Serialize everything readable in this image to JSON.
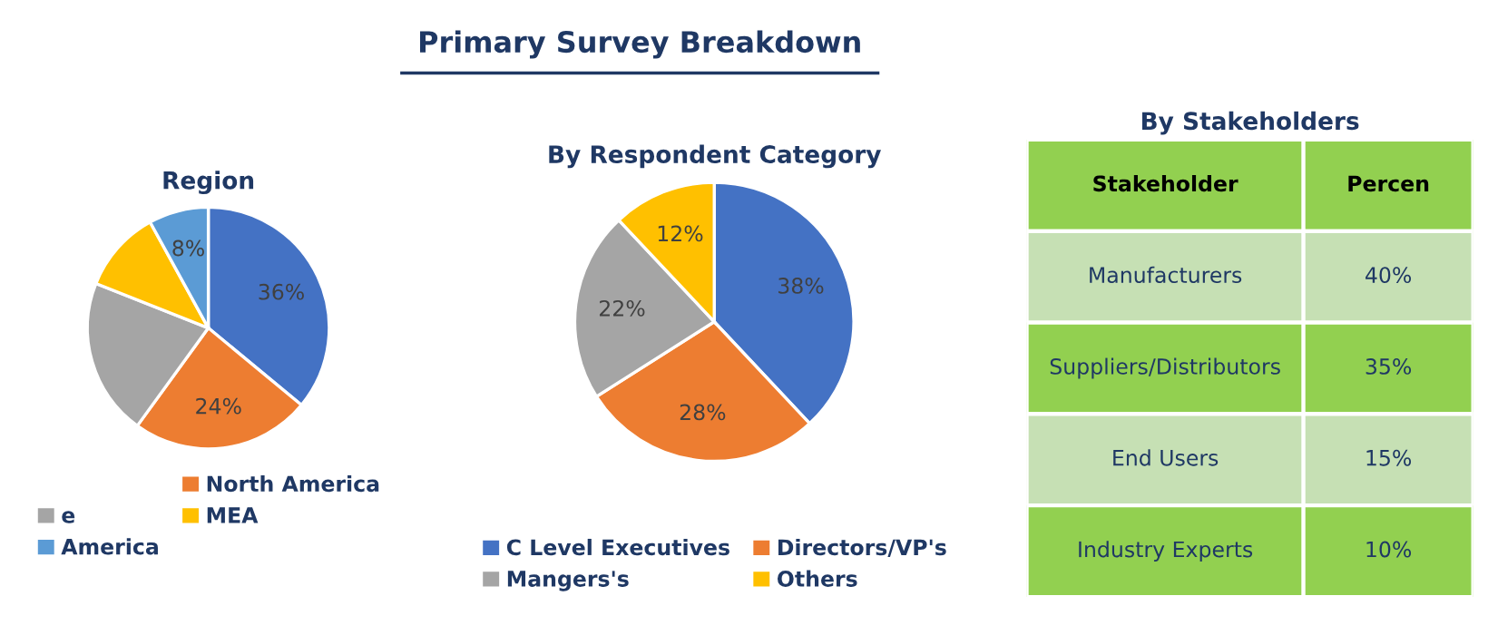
{
  "chart_data": [
    {
      "type": "pie",
      "title": "Region",
      "annotations": [
        "Primary Survey Breakdown"
      ],
      "categories": [
        null,
        "North America",
        "e",
        "MEA",
        "America"
      ],
      "values": [
        36,
        24,
        21,
        11,
        8
      ],
      "value_labels": [
        "36%",
        "24%",
        null,
        null,
        "8%"
      ],
      "colors": [
        "#4472c4",
        "#ed7d31",
        "#a5a5a5",
        "#ffc000",
        "#5b9bd5"
      ],
      "legend": "bottom"
    },
    {
      "type": "pie",
      "title": "By Respondent Category",
      "categories": [
        "C Level Executives",
        "Directors/VP's",
        "Mangers's",
        "Others"
      ],
      "values": [
        38,
        28,
        22,
        12
      ],
      "value_labels": [
        "38%",
        "28%",
        "22%",
        "12%"
      ],
      "colors": [
        "#4472c4",
        "#ed7d31",
        "#a5a5a5",
        "#ffc000"
      ],
      "legend": "bottom"
    },
    {
      "type": "other",
      "title": "By Stakeholders",
      "xlabel": "Stakeholder",
      "ylabel": "Percen",
      "categories": [
        "Manufacturers",
        "Suppliers/Distributors",
        "End Users",
        "Industry Experts"
      ],
      "values": [
        40,
        35,
        15,
        10
      ],
      "value_labels": [
        "40%",
        "35%",
        "15%",
        "10%"
      ],
      "colors": [
        "#c6e0b4",
        "#92d050",
        "#c6e0b4",
        "#92d050"
      ]
    }
  ]
}
